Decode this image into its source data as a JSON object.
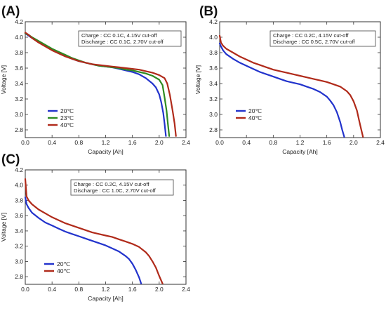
{
  "chart_data": [
    {
      "type": "line",
      "panel_label": "(A)",
      "xlabel": "Capacity [Ah]",
      "ylabel": "Voltage [V]",
      "xlim": [
        0.0,
        2.4
      ],
      "ylim": [
        2.7,
        4.2
      ],
      "xticks": [
        "0.0",
        "0.4",
        "0.8",
        "1.2",
        "1.6",
        "2.0",
        "2.4"
      ],
      "yticks": [
        "2.8",
        "3.0",
        "3.2",
        "3.4",
        "3.6",
        "3.8",
        "4.0",
        "4.2"
      ],
      "grid": false,
      "legend_position": "bottom-left",
      "annotation": [
        "Charge : CC 0.1C, 4.15V cut-off",
        "Discharge : CC 0.1C, 2.70V cut-off"
      ],
      "series": [
        {
          "name": "20℃",
          "color": "#2233cc",
          "x": [
            0.0,
            0.05,
            0.1,
            0.2,
            0.3,
            0.4,
            0.5,
            0.6,
            0.7,
            0.8,
            0.9,
            1.0,
            1.1,
            1.2,
            1.3,
            1.4,
            1.5,
            1.6,
            1.7,
            1.8,
            1.9,
            1.95,
            2.0,
            2.03,
            2.06,
            2.08,
            2.1
          ],
          "y": [
            4.05,
            4.02,
            3.99,
            3.94,
            3.89,
            3.84,
            3.8,
            3.76,
            3.72,
            3.69,
            3.67,
            3.65,
            3.63,
            3.62,
            3.61,
            3.59,
            3.57,
            3.55,
            3.52,
            3.47,
            3.4,
            3.35,
            3.26,
            3.16,
            3.02,
            2.88,
            2.72
          ]
        },
        {
          "name": "23℃",
          "color": "#2e8b22",
          "x": [
            0.0,
            0.05,
            0.1,
            0.2,
            0.3,
            0.4,
            0.5,
            0.6,
            0.7,
            0.8,
            0.9,
            1.0,
            1.1,
            1.2,
            1.3,
            1.4,
            1.5,
            1.6,
            1.7,
            1.8,
            1.9,
            2.0,
            2.05,
            2.08,
            2.11,
            2.13,
            2.15
          ],
          "y": [
            4.05,
            4.03,
            4.0,
            3.95,
            3.9,
            3.85,
            3.81,
            3.77,
            3.73,
            3.7,
            3.67,
            3.65,
            3.63,
            3.62,
            3.61,
            3.6,
            3.58,
            3.57,
            3.55,
            3.53,
            3.5,
            3.45,
            3.38,
            3.22,
            3.05,
            2.88,
            2.72
          ]
        },
        {
          "name": "40℃",
          "color": "#b02a1a",
          "x": [
            0.0,
            0.05,
            0.1,
            0.2,
            0.3,
            0.4,
            0.5,
            0.6,
            0.7,
            0.8,
            0.9,
            1.0,
            1.1,
            1.2,
            1.3,
            1.4,
            1.5,
            1.6,
            1.7,
            1.8,
            1.9,
            2.0,
            2.08,
            2.12,
            2.16,
            2.2,
            2.23,
            2.25
          ],
          "y": [
            4.06,
            4.03,
            3.99,
            3.93,
            3.88,
            3.83,
            3.79,
            3.75,
            3.72,
            3.69,
            3.67,
            3.65,
            3.64,
            3.63,
            3.62,
            3.61,
            3.6,
            3.59,
            3.58,
            3.56,
            3.54,
            3.51,
            3.47,
            3.4,
            3.25,
            3.05,
            2.88,
            2.72
          ]
        }
      ]
    },
    {
      "type": "line",
      "panel_label": "(B)",
      "xlabel": "Capacity [Ah]",
      "ylabel": "Voltage [V]",
      "xlim": [
        0.0,
        2.4
      ],
      "ylim": [
        2.7,
        4.2
      ],
      "xticks": [
        "0.0",
        "0.4",
        "0.8",
        "1.2",
        "1.6",
        "2.0",
        "2.4"
      ],
      "yticks": [
        "2.8",
        "3.0",
        "3.2",
        "3.4",
        "3.6",
        "3.8",
        "4.0",
        "4.2"
      ],
      "grid": false,
      "legend_position": "bottom-left",
      "annotation": [
        "Charge : CC 0.2C, 4.15V cut-off",
        "Discharge : CC 0.5C, 2.70V cut-off"
      ],
      "series": [
        {
          "name": "20℃",
          "color": "#2233cc",
          "x": [
            0.0,
            0.02,
            0.05,
            0.1,
            0.2,
            0.3,
            0.4,
            0.5,
            0.6,
            0.7,
            0.8,
            0.9,
            1.0,
            1.1,
            1.2,
            1.3,
            1.4,
            1.5,
            1.6,
            1.65,
            1.7,
            1.75,
            1.8,
            1.83,
            1.86
          ],
          "y": [
            3.92,
            3.88,
            3.83,
            3.78,
            3.72,
            3.67,
            3.63,
            3.59,
            3.55,
            3.52,
            3.49,
            3.46,
            3.43,
            3.41,
            3.39,
            3.36,
            3.33,
            3.29,
            3.23,
            3.18,
            3.12,
            3.03,
            2.9,
            2.8,
            2.71
          ]
        },
        {
          "name": "40℃",
          "color": "#b02a1a",
          "x": [
            0.0,
            0.02,
            0.05,
            0.1,
            0.2,
            0.3,
            0.4,
            0.5,
            0.6,
            0.7,
            0.8,
            0.9,
            1.0,
            1.1,
            1.2,
            1.3,
            1.4,
            1.5,
            1.6,
            1.7,
            1.8,
            1.9,
            1.95,
            2.0,
            2.05,
            2.08,
            2.11,
            2.14
          ],
          "y": [
            4.02,
            3.93,
            3.89,
            3.85,
            3.8,
            3.75,
            3.71,
            3.67,
            3.64,
            3.61,
            3.58,
            3.56,
            3.54,
            3.52,
            3.5,
            3.48,
            3.46,
            3.44,
            3.42,
            3.39,
            3.36,
            3.3,
            3.25,
            3.17,
            3.05,
            2.93,
            2.82,
            2.71
          ]
        }
      ]
    },
    {
      "type": "line",
      "panel_label": "(C)",
      "xlabel": "Capacity [Ah]",
      "ylabel": "Voltage [V]",
      "xlim": [
        0.0,
        2.4
      ],
      "ylim": [
        2.7,
        4.2
      ],
      "xticks": [
        "0.0",
        "0.4",
        "0.8",
        "1.2",
        "1.6",
        "2.0",
        "2.4"
      ],
      "yticks": [
        "2.8",
        "3.0",
        "3.2",
        "3.4",
        "3.6",
        "3.8",
        "4.0",
        "4.2"
      ],
      "grid": false,
      "legend_position": "bottom-left",
      "annotation": [
        "Charge : CC 0.2C, 4.15V cut-off",
        "Discharge : CC 1.0C, 2.70V cut-off"
      ],
      "series": [
        {
          "name": "20℃",
          "color": "#2233cc",
          "x": [
            0.0,
            0.02,
            0.05,
            0.1,
            0.2,
            0.3,
            0.4,
            0.5,
            0.6,
            0.7,
            0.8,
            0.9,
            1.0,
            1.1,
            1.2,
            1.3,
            1.4,
            1.5,
            1.55,
            1.6,
            1.65,
            1.7,
            1.73
          ],
          "y": [
            3.84,
            3.75,
            3.7,
            3.64,
            3.57,
            3.51,
            3.47,
            3.43,
            3.39,
            3.36,
            3.33,
            3.3,
            3.27,
            3.24,
            3.21,
            3.17,
            3.13,
            3.07,
            3.03,
            2.97,
            2.89,
            2.79,
            2.71
          ]
        },
        {
          "name": "40℃",
          "color": "#b02a1a",
          "x": [
            0.0,
            0.02,
            0.05,
            0.1,
            0.2,
            0.3,
            0.4,
            0.5,
            0.6,
            0.7,
            0.8,
            0.9,
            1.0,
            1.1,
            1.2,
            1.3,
            1.4,
            1.5,
            1.6,
            1.7,
            1.8,
            1.85,
            1.9,
            1.95,
            2.0,
            2.05
          ],
          "y": [
            4.08,
            3.85,
            3.8,
            3.75,
            3.68,
            3.63,
            3.58,
            3.54,
            3.5,
            3.47,
            3.44,
            3.41,
            3.38,
            3.36,
            3.34,
            3.32,
            3.29,
            3.26,
            3.23,
            3.19,
            3.12,
            3.07,
            3.0,
            2.92,
            2.81,
            2.71
          ]
        }
      ]
    }
  ]
}
